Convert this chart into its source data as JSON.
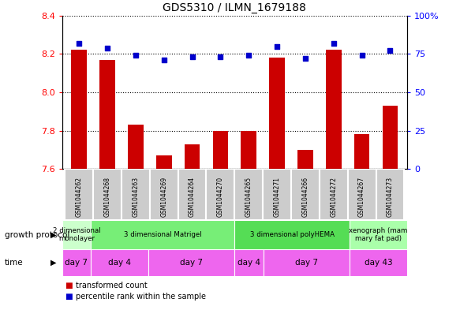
{
  "title": "GDS5310 / ILMN_1679188",
  "samples": [
    "GSM1044262",
    "GSM1044268",
    "GSM1044263",
    "GSM1044269",
    "GSM1044264",
    "GSM1044270",
    "GSM1044265",
    "GSM1044271",
    "GSM1044266",
    "GSM1044272",
    "GSM1044267",
    "GSM1044273"
  ],
  "transformed_count": [
    8.22,
    8.17,
    7.83,
    7.67,
    7.73,
    7.8,
    7.8,
    8.18,
    7.7,
    8.22,
    7.78,
    7.93
  ],
  "percentile_rank": [
    82,
    79,
    74,
    71,
    73,
    73,
    74,
    80,
    72,
    82,
    74,
    77
  ],
  "ylim_left": [
    7.6,
    8.4
  ],
  "ylim_right": [
    0,
    100
  ],
  "yticks_left": [
    7.6,
    7.8,
    8.0,
    8.2,
    8.4
  ],
  "yticks_right": [
    0,
    25,
    50,
    75,
    100
  ],
  "bar_color": "#cc0000",
  "dot_color": "#0000cc",
  "growth_protocol_groups": [
    {
      "label": "2 dimensional\nmonolayer",
      "start": 0,
      "end": 1,
      "color": "#ccffcc"
    },
    {
      "label": "3 dimensional Matrigel",
      "start": 1,
      "end": 6,
      "color": "#77ee77"
    },
    {
      "label": "3 dimensional polyHEMA",
      "start": 6,
      "end": 10,
      "color": "#55dd55"
    },
    {
      "label": "xenograph (mam\nmary fat pad)",
      "start": 10,
      "end": 12,
      "color": "#aaffaa"
    }
  ],
  "time_groups": [
    {
      "label": "day 7",
      "start": 0,
      "end": 1
    },
    {
      "label": "day 4",
      "start": 1,
      "end": 3
    },
    {
      "label": "day 7",
      "start": 3,
      "end": 6
    },
    {
      "label": "day 4",
      "start": 6,
      "end": 7
    },
    {
      "label": "day 7",
      "start": 7,
      "end": 10
    },
    {
      "label": "day 43",
      "start": 10,
      "end": 12
    }
  ],
  "time_color": "#ee66ee",
  "sample_box_color": "#cccccc",
  "sample_box_edge": "#ffffff",
  "growth_protocol_label": "growth protocol",
  "time_label": "time",
  "legend_bar_label": "transformed count",
  "legend_dot_label": "percentile rank within the sample",
  "bar_width": 0.55
}
